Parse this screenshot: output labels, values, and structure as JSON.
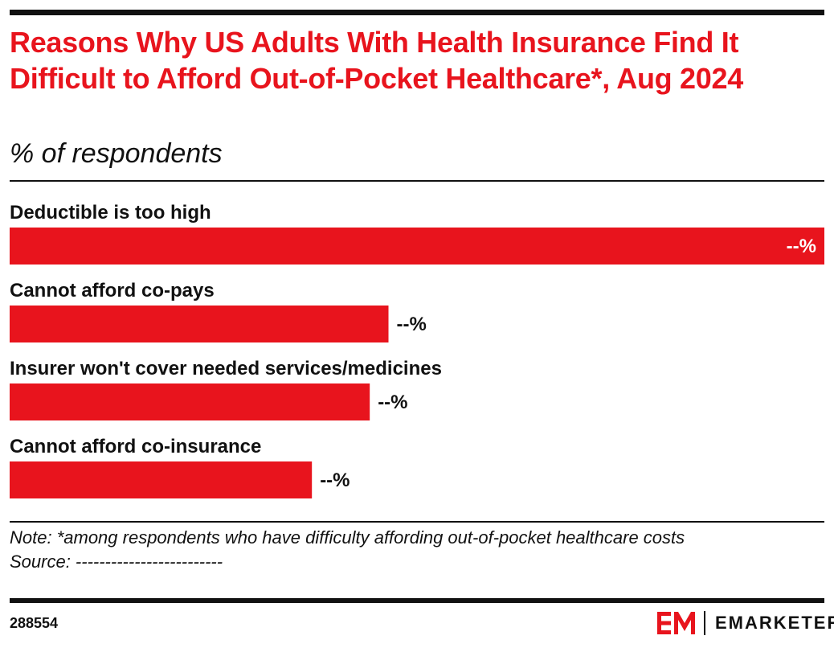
{
  "header": {
    "title": "Reasons Why US Adults With Health Insurance Find It Difficult to Afford Out-of-Pocket Healthcare*, Aug 2024",
    "subtitle": "% of respondents"
  },
  "chart_data": {
    "type": "bar",
    "orientation": "horizontal",
    "categories": [
      "Deductible is too high",
      "Cannot afford co-pays",
      "Insurer won't cover needed services/medicines",
      "Cannot afford co-insurance"
    ],
    "values": [
      100,
      46.5,
      44.2,
      37.1
    ],
    "value_labels": [
      "--%",
      "--%",
      "--%",
      "--%"
    ],
    "bar_color": "#e8141d",
    "grid": false,
    "legend": "none"
  },
  "footer": {
    "note": "Note: *among respondents who have difficulty affording out-of-pocket healthcare costs",
    "source": "Source: -------------------------",
    "chart_id": "288554",
    "brand": "EMARKETER"
  },
  "colors": {
    "accent": "#e8141d",
    "text": "#111111",
    "background": "#ffffff"
  }
}
